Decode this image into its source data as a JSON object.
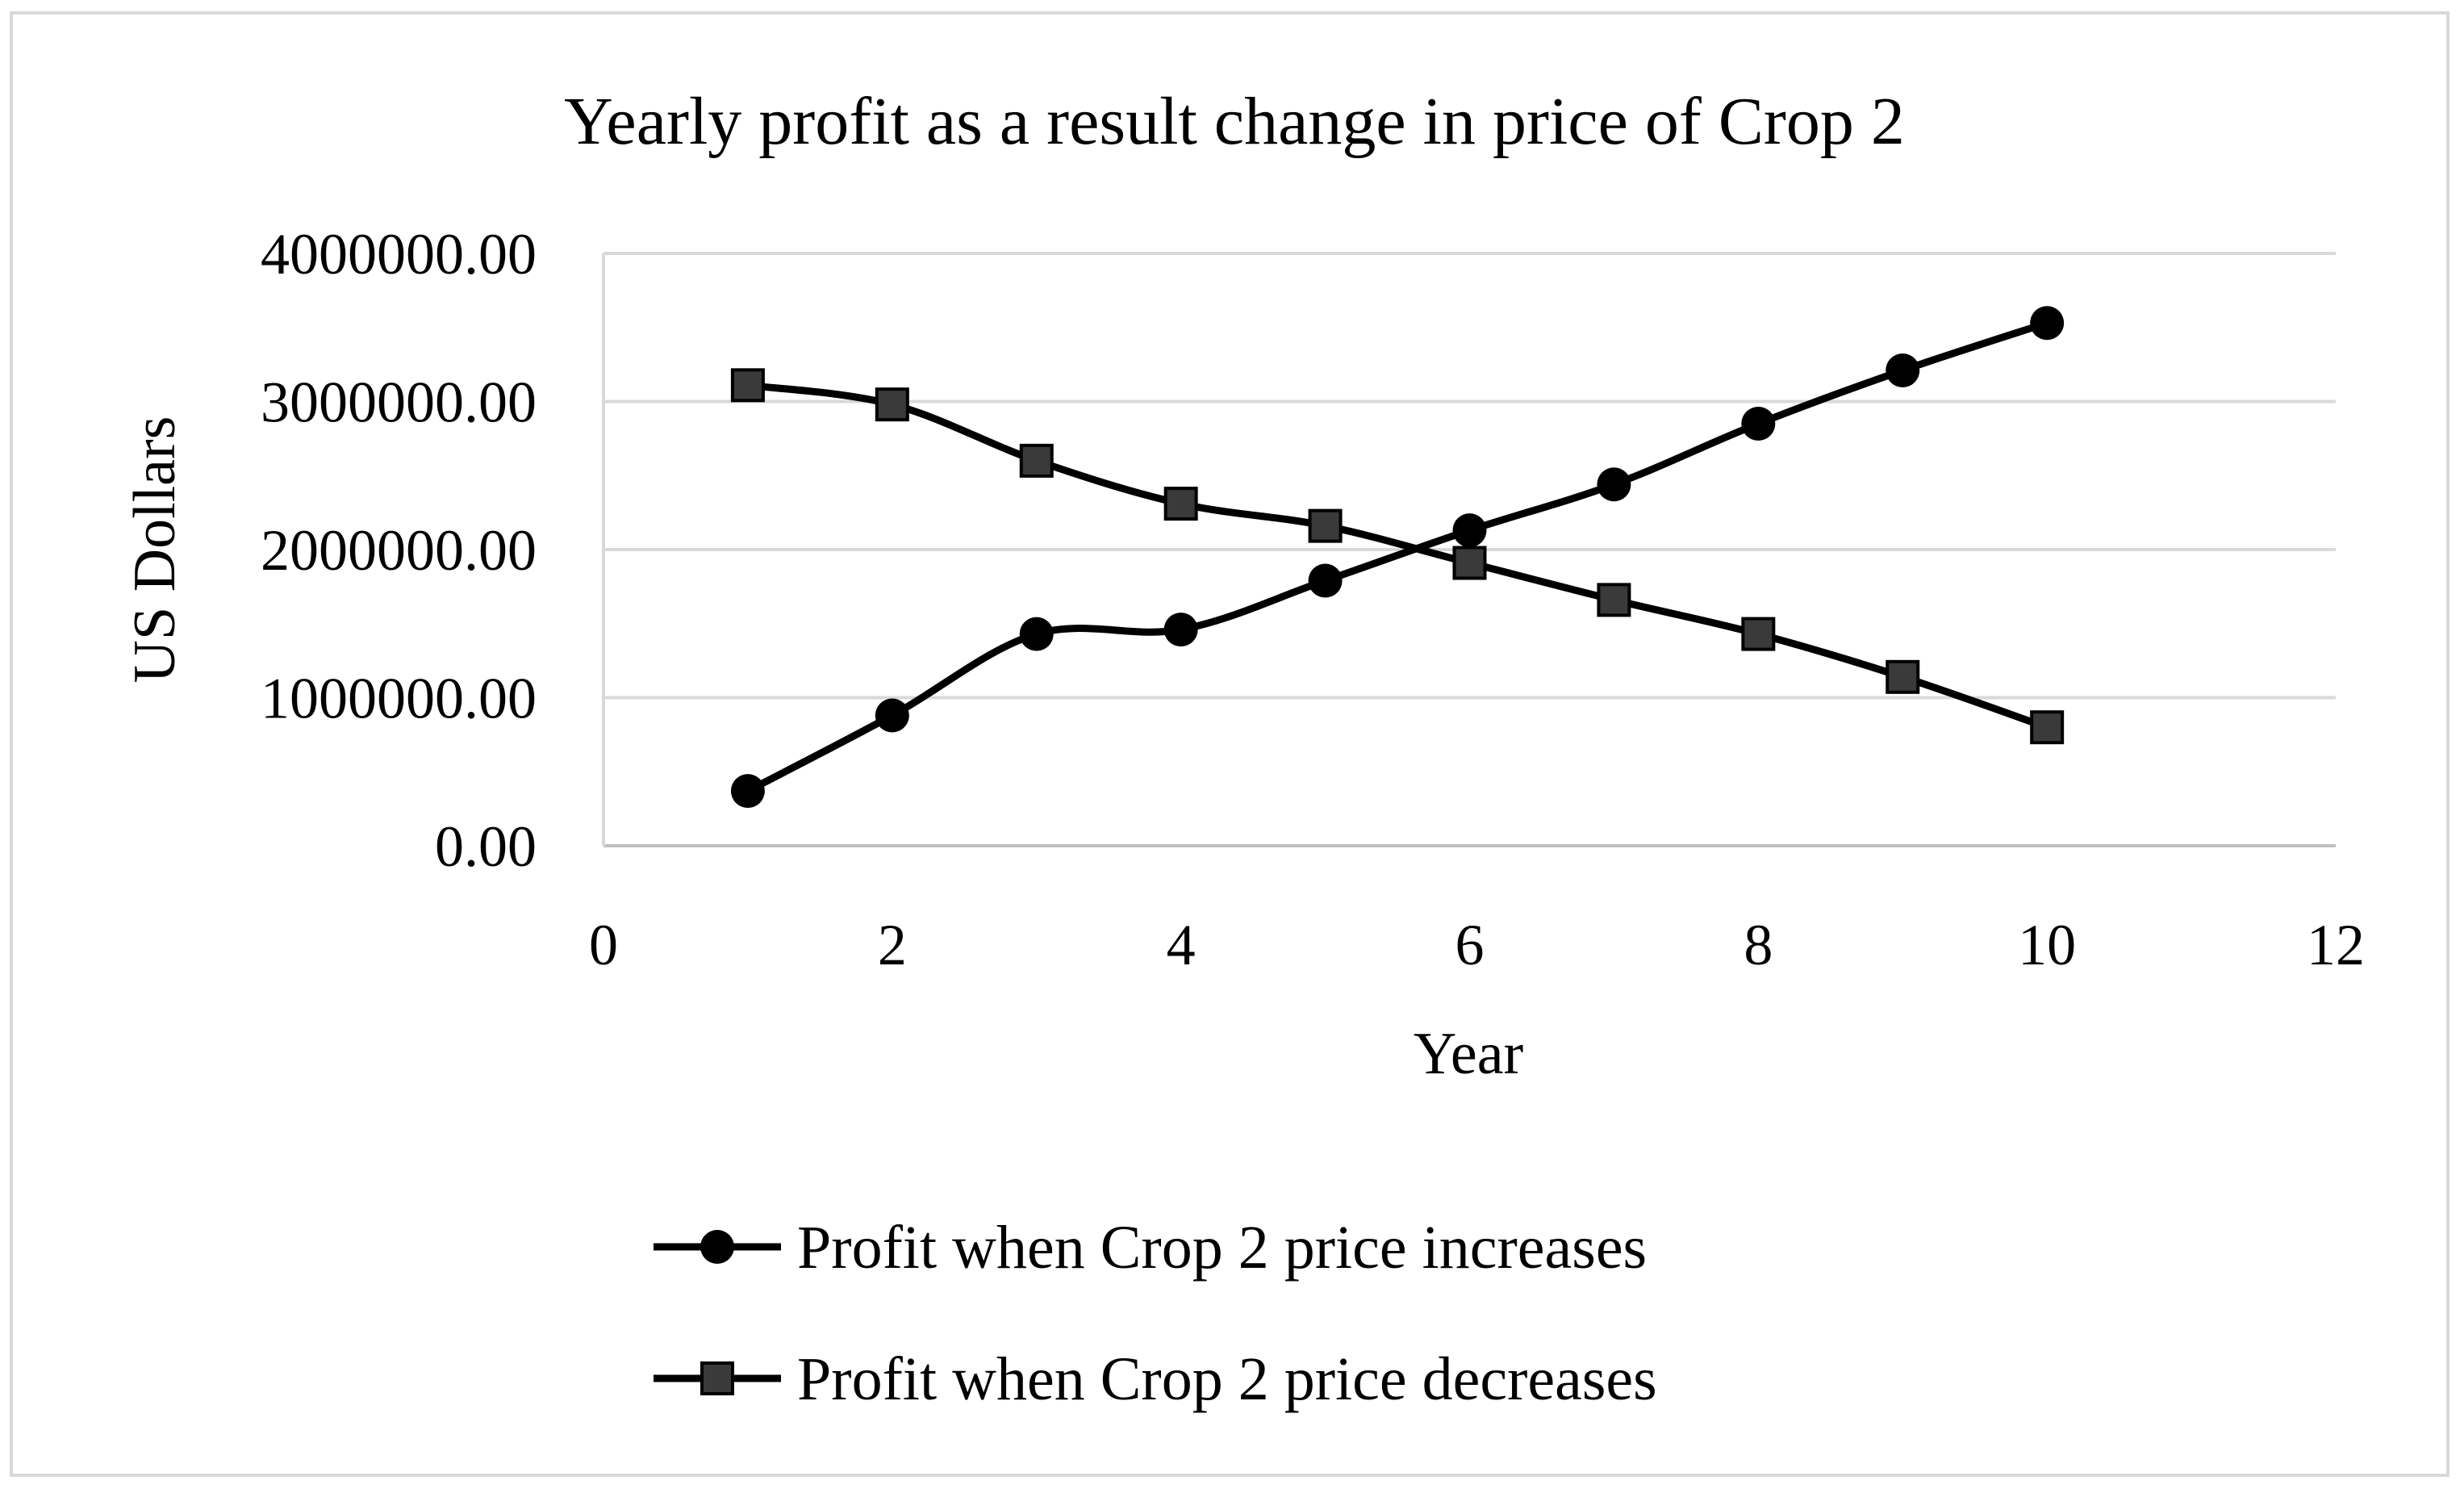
{
  "chart_data": {
    "type": "line",
    "title": "Yearly profit as a result change in price of Crop 2",
    "xlabel": "Year",
    "ylabel": "US Dollars",
    "xlim": [
      0,
      12
    ],
    "ylim": [
      0,
      4000000
    ],
    "x_ticks": [
      0,
      2,
      4,
      6,
      8,
      10,
      12
    ],
    "x_tick_labels": [
      "0",
      "2",
      "4",
      "6",
      "8",
      "10",
      "12"
    ],
    "y_ticks": [
      0,
      1000000,
      2000000,
      3000000,
      4000000
    ],
    "y_tick_labels": [
      "0.00",
      "1000000.00",
      "2000000.00",
      "3000000.00",
      "4000000.00"
    ],
    "grid": "horizontal",
    "legend_position": "bottom",
    "series": [
      {
        "name": "Profit when Crop 2 price increases",
        "marker": "circle",
        "color": "#000000",
        "x": [
          1,
          2,
          3,
          4,
          5,
          6,
          7,
          8,
          9,
          10
        ],
        "values": [
          370000,
          880000,
          1430000,
          1460000,
          1790000,
          2130000,
          2440000,
          2850000,
          3210000,
          3530000
        ]
      },
      {
        "name": "Profit when Crop 2 price decreases",
        "marker": "square",
        "color": "#000000",
        "x": [
          1,
          2,
          3,
          4,
          5,
          6,
          7,
          8,
          9,
          10
        ],
        "values": [
          3110000,
          2980000,
          2600000,
          2310000,
          2160000,
          1910000,
          1660000,
          1430000,
          1140000,
          800000
        ]
      }
    ]
  }
}
